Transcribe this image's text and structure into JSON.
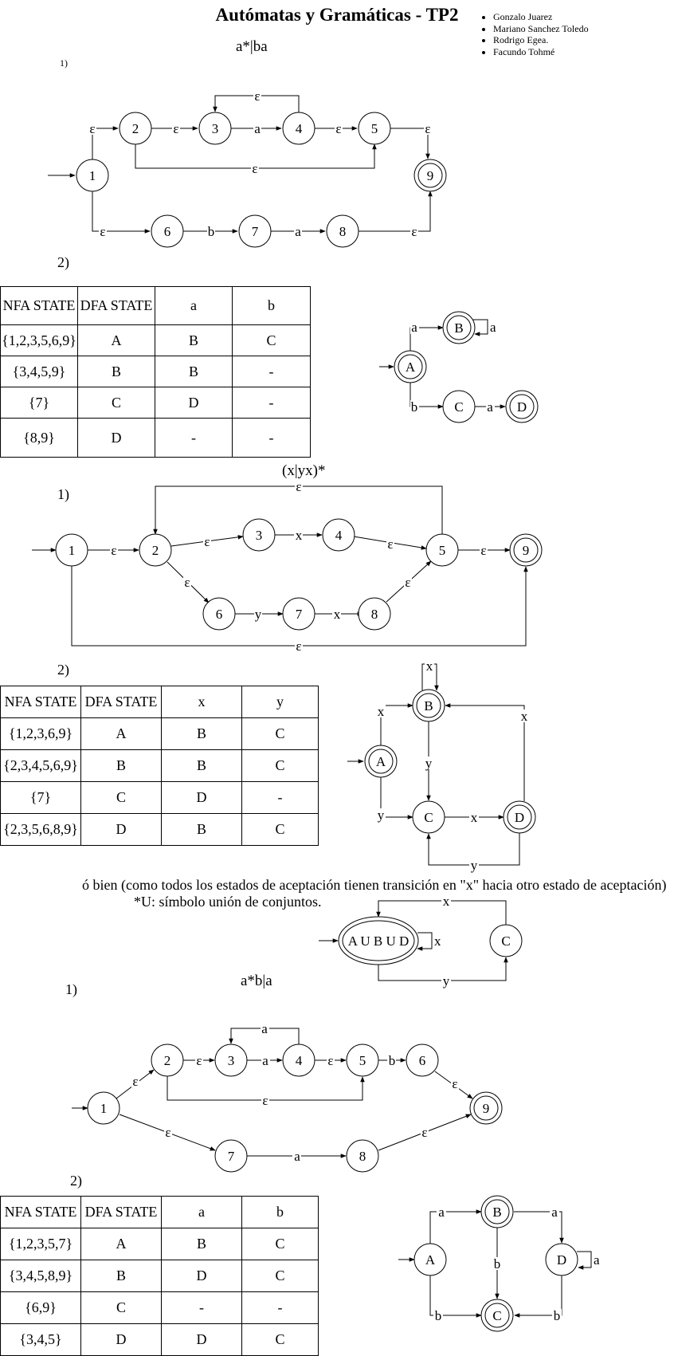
{
  "title": "Autómatas y Gramáticas - TP2",
  "authors": [
    "Gonzalo Juarez",
    "Mariano Sanchez Toledo",
    "Rodrigo Egea.",
    "Facundo Tohmé"
  ],
  "sections": [
    {
      "regex": "a*|ba",
      "step1_label": "1)",
      "step2_label": "2)",
      "nfa_states": [
        "1",
        "2",
        "3",
        "4",
        "5",
        "6",
        "7",
        "8",
        "9"
      ],
      "nfa_edge_labels": [
        "ε",
        "ε",
        "a",
        "ε",
        "ε",
        "ε",
        "ε",
        "ε",
        "b",
        "a",
        "ε"
      ],
      "table": {
        "headers": [
          "NFA STATE",
          "DFA STATE",
          "a",
          "b"
        ],
        "rows": [
          [
            "{1,2,3,5,6,9}",
            "A",
            "B",
            "C"
          ],
          [
            "{3,4,5,9}",
            "B",
            "B",
            "-"
          ],
          [
            "{7}",
            "C",
            "D",
            "-"
          ],
          [
            "{8,9}",
            "D",
            "-",
            "-"
          ]
        ]
      },
      "dfa_states": [
        "A",
        "B",
        "C",
        "D"
      ],
      "dfa_edge_labels": [
        "a",
        "a",
        "b",
        "a"
      ]
    },
    {
      "regex": "(x|yx)*",
      "step1_label": "1)",
      "step2_label": "2)",
      "nfa_states": [
        "1",
        "2",
        "3",
        "4",
        "5",
        "6",
        "7",
        "8",
        "9"
      ],
      "nfa_edge_labels": [
        "ε",
        "ε",
        "x",
        "ε",
        "ε",
        "ε",
        "y",
        "x",
        "ε",
        "ε",
        "ε"
      ],
      "table": {
        "headers": [
          "NFA STATE",
          "DFA STATE",
          "x",
          "y"
        ],
        "rows": [
          [
            "{1,2,3,6,9}",
            "A",
            "B",
            "C"
          ],
          [
            "{2,3,4,5,6,9}",
            "B",
            "B",
            "C"
          ],
          [
            "{7}",
            "C",
            "D",
            "-"
          ],
          [
            "{2,3,5,6,8,9}",
            "D",
            "B",
            "C"
          ]
        ]
      },
      "dfa_states": [
        "A",
        "B",
        "C",
        "D"
      ],
      "dfa_edge_labels": [
        "x",
        "x",
        "y",
        "y",
        "x",
        "x",
        "y"
      ],
      "alt_note": "ó bien (como todos los estados de aceptación tienen transición en \"x\" hacia otro estado de aceptación)",
      "union_note": "*U: símbolo unión de conjuntos.",
      "min_states": [
        "A U B U D",
        "C"
      ],
      "min_edge_labels": [
        "x",
        "x",
        "y"
      ]
    },
    {
      "regex": "a*b|a",
      "step1_label": "1)",
      "step2_label": "2)",
      "nfa_states": [
        "1",
        "2",
        "3",
        "4",
        "5",
        "6",
        "7",
        "8",
        "9"
      ],
      "nfa_edge_labels": [
        "ε",
        "ε",
        "a",
        "a",
        "ε",
        "b",
        "ε",
        "ε",
        "ε",
        "a",
        "ε"
      ],
      "table": {
        "headers": [
          "NFA STATE",
          "DFA STATE",
          "a",
          "b"
        ],
        "rows": [
          [
            "{1,2,3,5,7}",
            "A",
            "B",
            "C"
          ],
          [
            "{3,4,5,8,9}",
            "B",
            "D",
            "C"
          ],
          [
            "{6,9}",
            "C",
            "-",
            "-"
          ],
          [
            "{3,4,5}",
            "D",
            "D",
            "C"
          ]
        ]
      },
      "dfa_states": [
        "A",
        "B",
        "C",
        "D"
      ],
      "dfa_edge_labels": [
        "a",
        "a",
        "b",
        "b",
        "b",
        "a"
      ]
    }
  ]
}
